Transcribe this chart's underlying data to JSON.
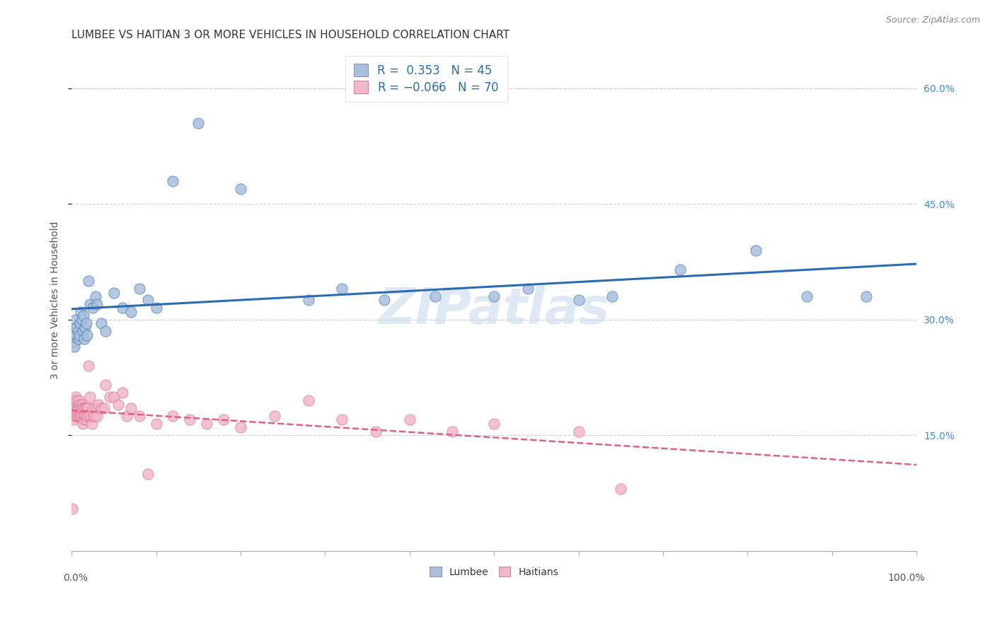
{
  "title": "LUMBEE VS HAITIAN 3 OR MORE VEHICLES IN HOUSEHOLD CORRELATION CHART",
  "source": "Source: ZipAtlas.com",
  "ylabel": "3 or more Vehicles in Household",
  "watermark": "ZIPatlas",
  "lumbee": {
    "R": 0.353,
    "N": 45,
    "dot_color": "#aabfdc",
    "line_color": "#2b6cb0",
    "x": [
      0.002,
      0.003,
      0.004,
      0.005,
      0.006,
      0.007,
      0.008,
      0.009,
      0.01,
      0.011,
      0.012,
      0.013,
      0.014,
      0.015,
      0.016,
      0.017,
      0.018,
      0.02,
      0.022,
      0.025,
      0.028,
      0.03,
      0.035,
      0.04,
      0.05,
      0.06,
      0.07,
      0.08,
      0.09,
      0.1,
      0.12,
      0.15,
      0.2,
      0.28,
      0.32,
      0.37,
      0.43,
      0.5,
      0.54,
      0.6,
      0.64,
      0.72,
      0.81,
      0.87,
      0.94
    ],
    "y": [
      0.27,
      0.265,
      0.3,
      0.28,
      0.29,
      0.285,
      0.275,
      0.28,
      0.295,
      0.31,
      0.3,
      0.285,
      0.305,
      0.275,
      0.29,
      0.295,
      0.28,
      0.35,
      0.32,
      0.315,
      0.33,
      0.32,
      0.295,
      0.285,
      0.335,
      0.315,
      0.31,
      0.34,
      0.325,
      0.315,
      0.48,
      0.555,
      0.47,
      0.325,
      0.34,
      0.325,
      0.33,
      0.33,
      0.34,
      0.325,
      0.33,
      0.365,
      0.39,
      0.33,
      0.33
    ]
  },
  "haitian": {
    "R": -0.066,
    "N": 70,
    "dot_color": "#f0b8c8",
    "line_color": "#e06080",
    "x": [
      0.001,
      0.002,
      0.003,
      0.004,
      0.004,
      0.005,
      0.005,
      0.006,
      0.006,
      0.007,
      0.007,
      0.008,
      0.008,
      0.009,
      0.009,
      0.01,
      0.01,
      0.011,
      0.011,
      0.012,
      0.012,
      0.013,
      0.013,
      0.014,
      0.015,
      0.015,
      0.016,
      0.016,
      0.017,
      0.017,
      0.018,
      0.018,
      0.019,
      0.02,
      0.021,
      0.022,
      0.023,
      0.024,
      0.025,
      0.026,
      0.027,
      0.028,
      0.03,
      0.032,
      0.035,
      0.038,
      0.04,
      0.045,
      0.05,
      0.055,
      0.06,
      0.065,
      0.07,
      0.08,
      0.09,
      0.1,
      0.12,
      0.14,
      0.16,
      0.18,
      0.2,
      0.24,
      0.28,
      0.32,
      0.36,
      0.4,
      0.45,
      0.5,
      0.6,
      0.65
    ],
    "y": [
      0.055,
      0.17,
      0.195,
      0.175,
      0.19,
      0.185,
      0.2,
      0.175,
      0.195,
      0.185,
      0.175,
      0.19,
      0.185,
      0.175,
      0.195,
      0.175,
      0.19,
      0.185,
      0.175,
      0.19,
      0.185,
      0.175,
      0.165,
      0.175,
      0.17,
      0.185,
      0.175,
      0.185,
      0.17,
      0.185,
      0.175,
      0.175,
      0.185,
      0.24,
      0.175,
      0.2,
      0.175,
      0.165,
      0.185,
      0.175,
      0.175,
      0.185,
      0.175,
      0.19,
      0.185,
      0.185,
      0.215,
      0.2,
      0.2,
      0.19,
      0.205,
      0.175,
      0.185,
      0.175,
      0.1,
      0.165,
      0.175,
      0.17,
      0.165,
      0.17,
      0.16,
      0.175,
      0.195,
      0.17,
      0.155,
      0.17,
      0.155,
      0.165,
      0.155,
      0.08
    ]
  },
  "xlim": [
    0.0,
    1.0
  ],
  "ylim": [
    0.0,
    0.65
  ],
  "yticks": [
    0.15,
    0.3,
    0.45,
    0.6
  ],
  "yticklabels": [
    "15.0%",
    "30.0%",
    "45.0%",
    "60.0%"
  ],
  "xtick_left_label": "0.0%",
  "xtick_right_label": "100.0%",
  "grid_color": "#cccccc",
  "background_color": "#ffffff",
  "title_fontsize": 11,
  "label_fontsize": 10,
  "tick_fontsize": 10,
  "legend_fontsize": 12,
  "source_fontsize": 9,
  "lumbee_legend_patch": "#aabfdc",
  "haitian_legend_patch": "#f0b8c8",
  "legend_text_color": "#2b6cb0"
}
